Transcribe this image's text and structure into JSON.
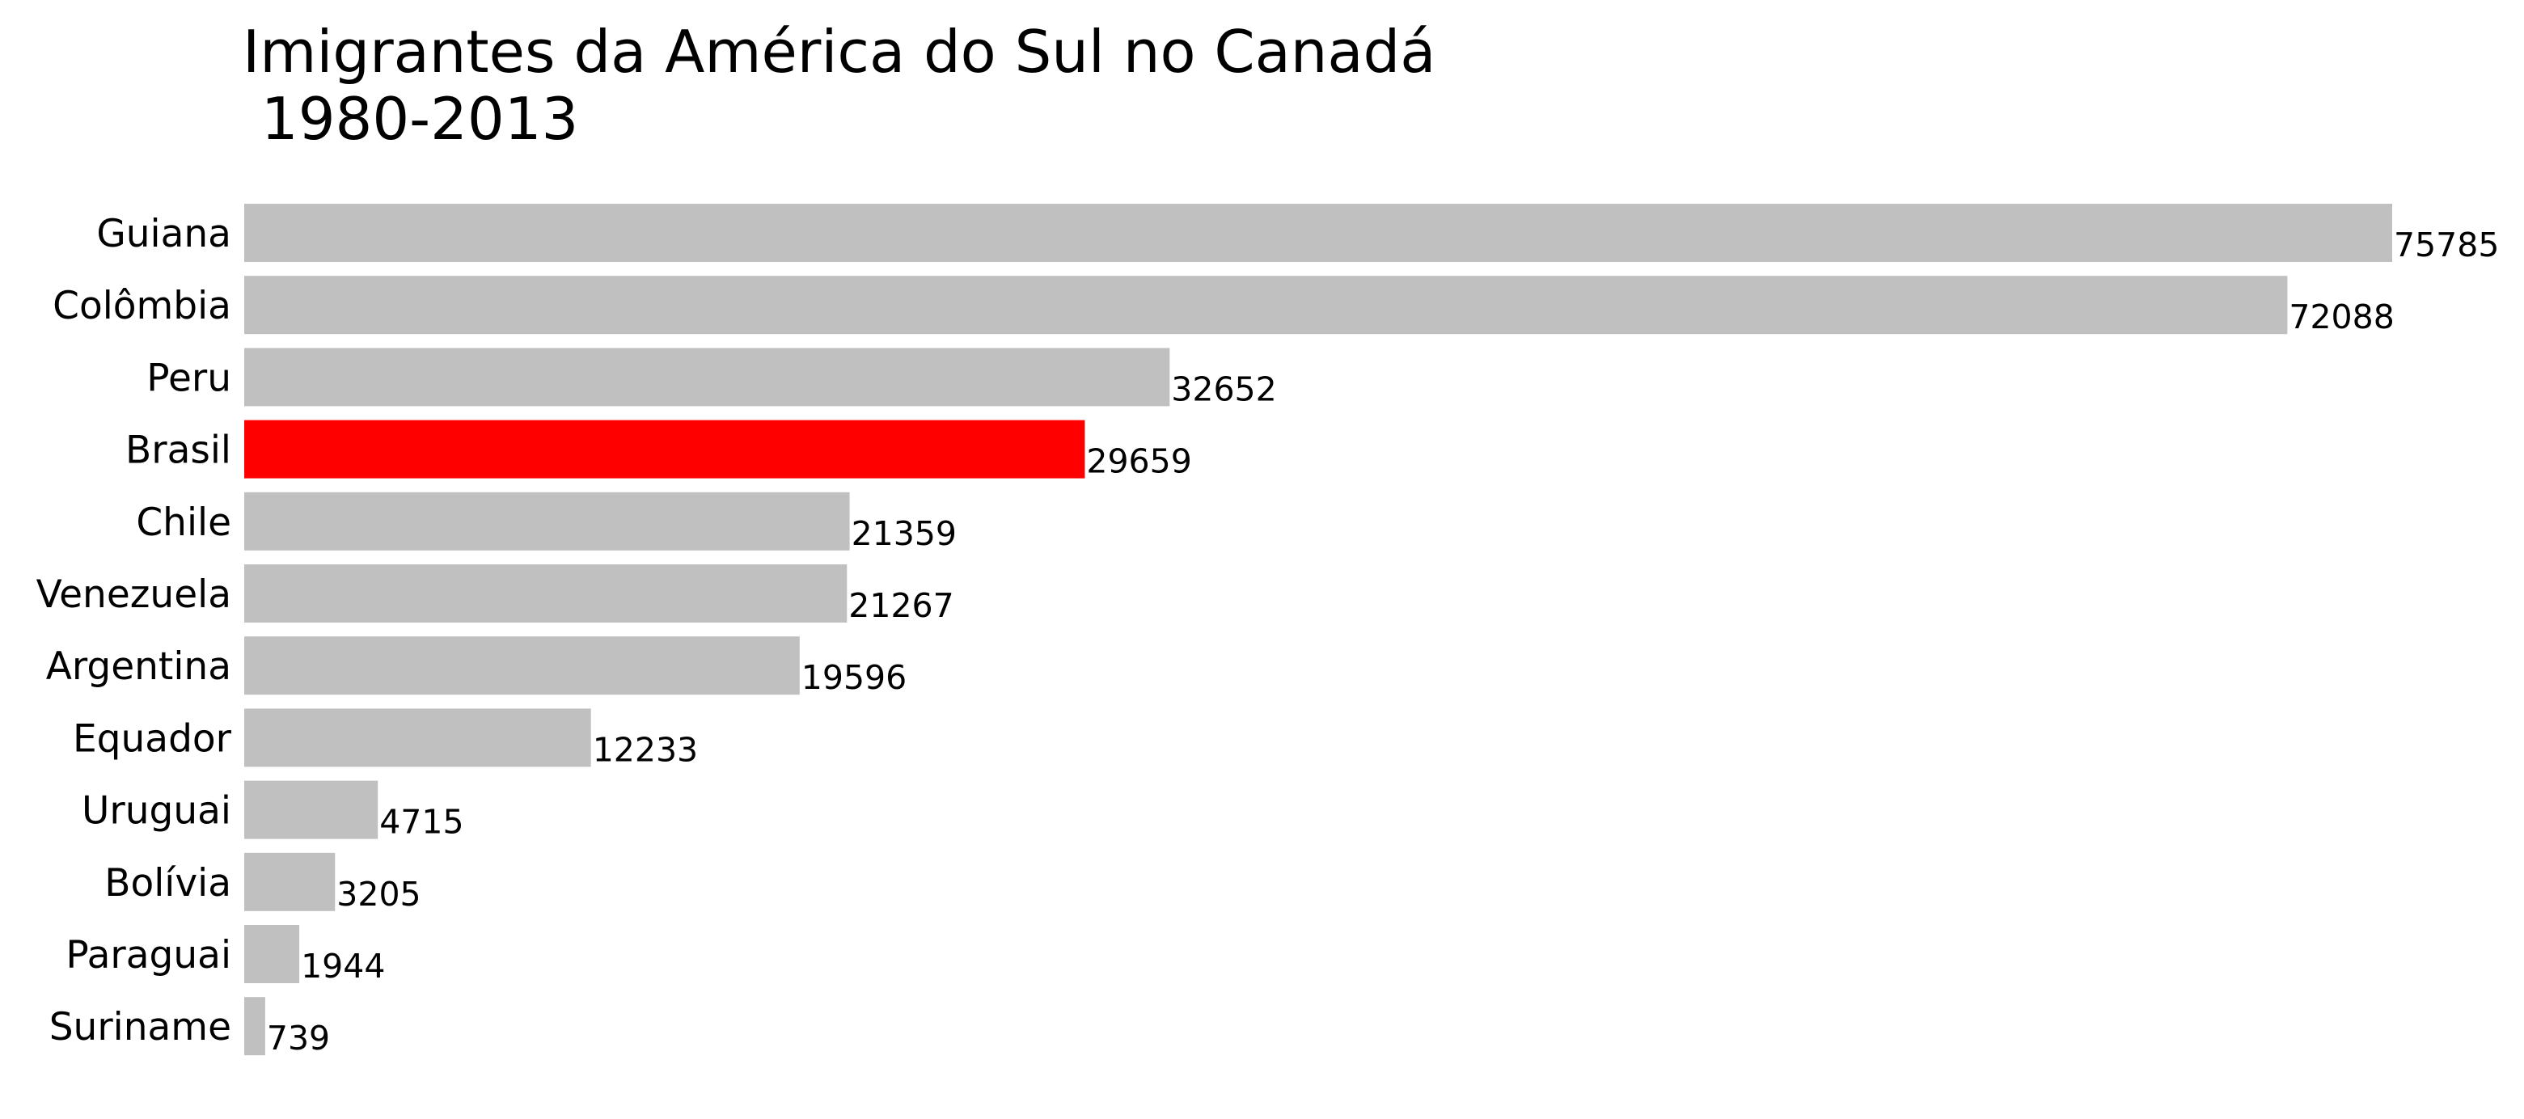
{
  "chart_data": {
    "type": "bar",
    "orientation": "horizontal",
    "title_lines": [
      "Imigrantes da América do Sul no Canadá",
      " 1980-2013"
    ],
    "categories": [
      "Guiana",
      "Colômbia",
      "Peru",
      "Brasil",
      "Chile",
      "Venezuela",
      "Argentina",
      "Equador",
      "Uruguai",
      "Bolívia",
      "Paraguai",
      "Suriname"
    ],
    "values": [
      75785,
      72088,
      32652,
      29659,
      21359,
      21267,
      19596,
      12233,
      4715,
      3205,
      1944,
      739
    ],
    "data_labels": [
      "75785",
      "72088",
      "32652",
      "29659",
      "21359",
      "21267",
      "19596",
      "12233",
      "4715",
      "3205",
      "1944",
      "739"
    ],
    "highlight_category": "Brasil",
    "colors": {
      "default_bar": "#c0c0c0",
      "highlight_bar": "#ff0000"
    },
    "xlabel": "",
    "ylabel": "",
    "xlim": [
      0,
      75785
    ],
    "grid": false,
    "axes_visible": false
  }
}
